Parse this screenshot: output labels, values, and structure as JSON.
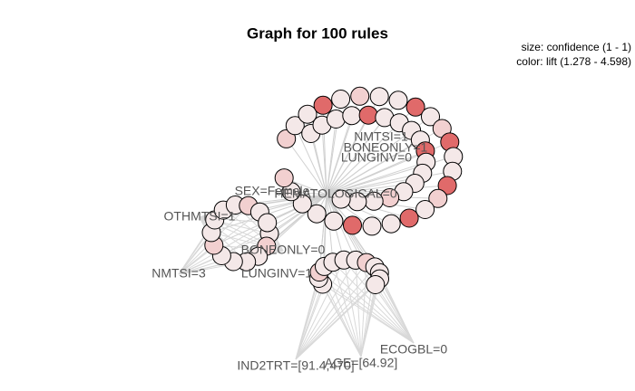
{
  "title": "Graph for 100 rules",
  "legend": {
    "size": "size: confidence (1 - 1)",
    "color": "color: lift (1.278 - 4.598)"
  },
  "nodes": [
    {
      "label": "NMTSI=1"
    },
    {
      "label": "BONEONLY=1"
    },
    {
      "label": "LUNGINV=0"
    },
    {
      "label": "SEX=Female"
    },
    {
      "label": "HEMATOLOGICAL=0"
    },
    {
      "label": "OTHMTSI=1"
    },
    {
      "label": "NMTSI=3"
    },
    {
      "label": "BONEONLY=0"
    },
    {
      "label": "LUNGINV=1"
    },
    {
      "label": "IND2TRT=[91.4,470]"
    },
    {
      "label": "AGE=[64.92]"
    },
    {
      "label": "ECOGBL=0"
    }
  ]
}
